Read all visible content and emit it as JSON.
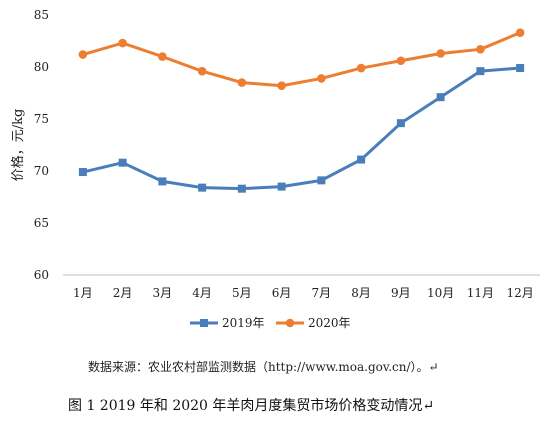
{
  "chart_data": {
    "type": "line",
    "title": "",
    "xlabel": "",
    "ylabel": "价格，元/kg",
    "ylim": [
      60,
      85
    ],
    "yticks": [
      60,
      65,
      70,
      75,
      80,
      85
    ],
    "grid": false,
    "legend_position": "bottom",
    "categories": [
      "1月",
      "2月",
      "3月",
      "4月",
      "5月",
      "6月",
      "7月",
      "8月",
      "9月",
      "10月",
      "11月",
      "12月"
    ],
    "series": [
      {
        "name": "2019年",
        "marker": "square",
        "color": "#4a7ebb",
        "values": [
          69.9,
          70.8,
          69.0,
          68.4,
          68.3,
          68.5,
          69.1,
          71.1,
          74.6,
          77.1,
          79.6,
          79.9
        ]
      },
      {
        "name": "2020年",
        "marker": "circle",
        "color": "#ed7d31",
        "values": [
          81.2,
          82.3,
          81.0,
          79.6,
          78.5,
          78.2,
          78.9,
          79.9,
          80.6,
          81.3,
          81.7,
          83.3
        ]
      }
    ]
  },
  "source_note": "数据来源：农业农村部监测数据（http://www.moa.gov.cn/）。↵",
  "figure_caption": "图 1    2019 年和 2020 年羊肉月度集贸市场价格变动情况↵"
}
